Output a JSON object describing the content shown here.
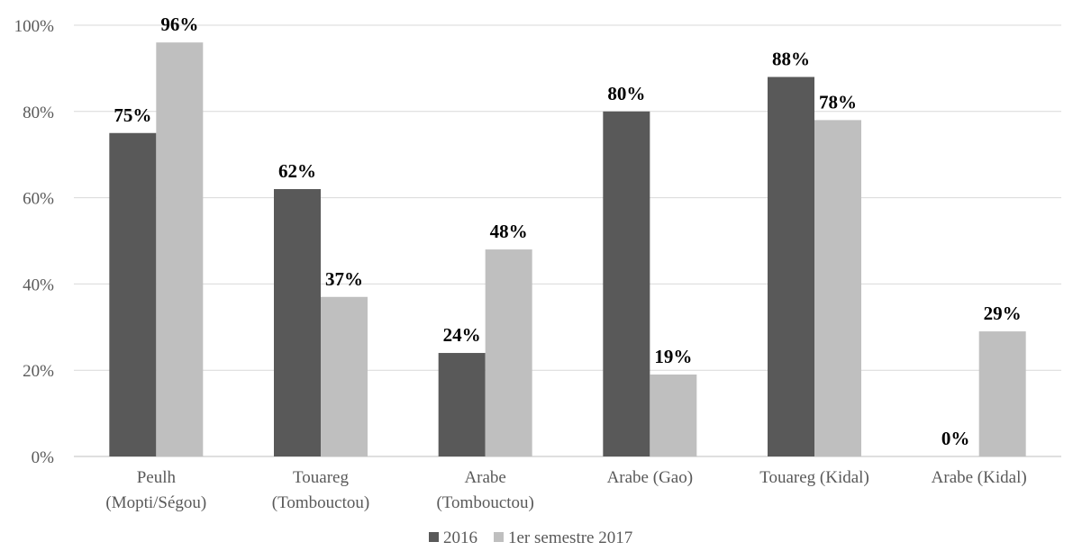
{
  "chart_data": {
    "type": "bar",
    "categories": [
      [
        "Peulh",
        "(Mopti/Ségou)"
      ],
      [
        "Touareg",
        "(Tombouctou)"
      ],
      [
        "Arabe",
        "(Tombouctou)"
      ],
      [
        "Arabe (Gao)"
      ],
      [
        "Touareg (Kidal)"
      ],
      [
        "Arabe (Kidal)"
      ]
    ],
    "series": [
      {
        "name": "2016",
        "color": "#595959",
        "values": [
          75,
          62,
          24,
          80,
          88,
          0
        ],
        "labels": [
          "75%",
          "62%",
          "24%",
          "80%",
          "88%",
          "0%"
        ]
      },
      {
        "name": "1er semestre 2017",
        "color": "#bfbfbf",
        "values": [
          96,
          37,
          48,
          19,
          78,
          29
        ],
        "labels": [
          "96%",
          "37%",
          "48%",
          "19%",
          "78%",
          "29%"
        ]
      }
    ],
    "ylim": [
      0,
      100
    ],
    "yticks": [
      0,
      20,
      40,
      60,
      80,
      100
    ],
    "ytick_labels": [
      "0%",
      "20%",
      "40%",
      "60%",
      "80%",
      "100%"
    ],
    "grid": true,
    "gridline_color": "#d9d9d9",
    "legend_position": "bottom"
  }
}
